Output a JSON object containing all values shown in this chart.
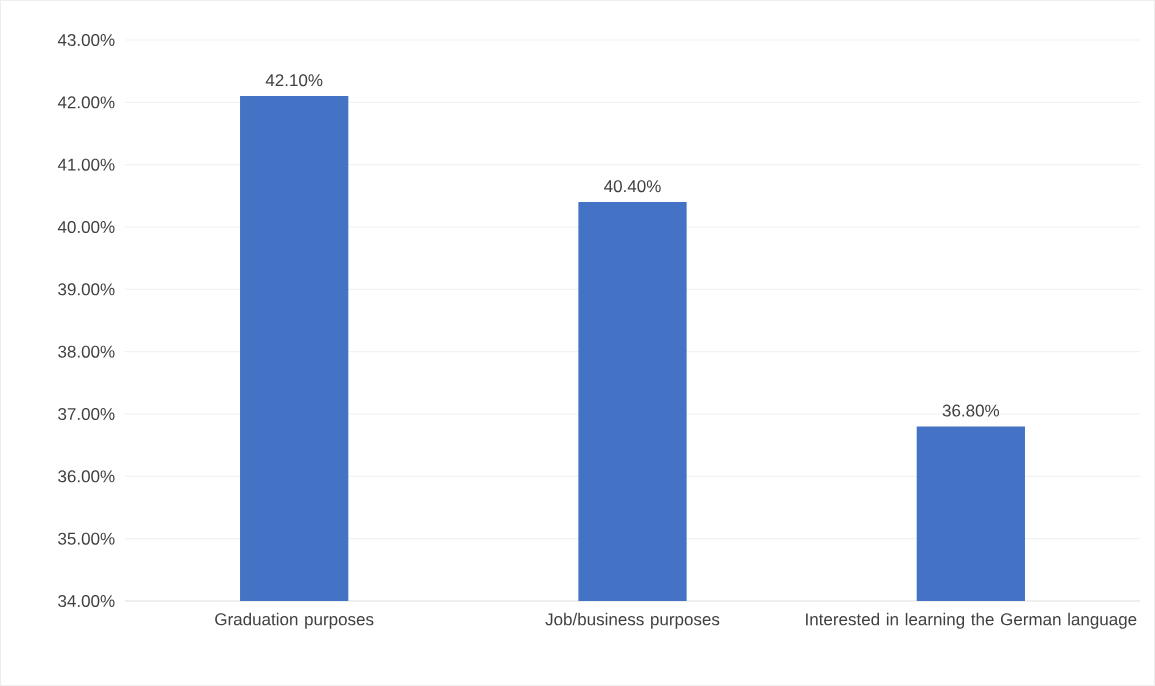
{
  "chart_data": {
    "type": "bar",
    "categories": [
      "Graduation purposes",
      "Job/business purposes",
      "Interested in learning the German language"
    ],
    "values": [
      42.1,
      40.4,
      36.8
    ],
    "color": "#4472c4",
    "value_labels": [
      "42.10%",
      "40.40%",
      "36.80%"
    ],
    "ylim": [
      34,
      43
    ],
    "yticks": [
      {
        "value": 34,
        "label": "34.00%"
      },
      {
        "value": 35,
        "label": "35.00%"
      },
      {
        "value": 36,
        "label": "36.00%"
      },
      {
        "value": 37,
        "label": "37.00%"
      },
      {
        "value": 38,
        "label": "38.00%"
      },
      {
        "value": 39,
        "label": "39.00%"
      },
      {
        "value": 40,
        "label": "40.00%"
      },
      {
        "value": 41,
        "label": "41.00%"
      },
      {
        "value": 42,
        "label": "42.00%"
      },
      {
        "value": 43,
        "label": "43.00%"
      }
    ],
    "grid": "y"
  }
}
